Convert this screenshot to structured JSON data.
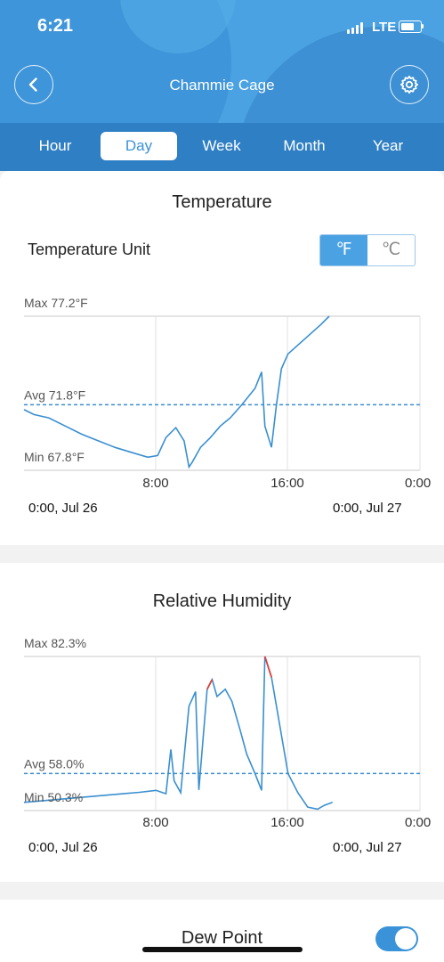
{
  "status_bar": {
    "time": "6:21",
    "network": "LTE"
  },
  "header": {
    "title": "Chammie Cage"
  },
  "tabs": [
    {
      "label": "Hour",
      "active": false
    },
    {
      "label": "Day",
      "active": true
    },
    {
      "label": "Week",
      "active": false
    },
    {
      "label": "Month",
      "active": false
    },
    {
      "label": "Year",
      "active": false
    }
  ],
  "temperature": {
    "title": "Temperature",
    "unit_label": "Temperature Unit",
    "unit_f": "℉",
    "unit_c": "℃",
    "selected_unit": "F",
    "max_label": "Max 77.2°F",
    "avg_label": "Avg 71.8°F",
    "min_label": "Min 67.8°F",
    "start_date": "0:00,  Jul 26",
    "end_date": "0:00,  Jul 27"
  },
  "humidity": {
    "title": "Relative Humidity",
    "max_label": "Max 82.3%",
    "avg_label": "Avg 58.0%",
    "min_label": "Min 50.3%",
    "start_date": "0:00,  Jul 26",
    "end_date": "0:00,  Jul 27"
  },
  "dew_point": {
    "title": "Dew Point",
    "enabled": true
  },
  "colors": {
    "accent": "#4aa2e2",
    "line": "#3a8fd0",
    "alert": "#e0403a"
  },
  "chart_data": [
    {
      "type": "line",
      "ylabel": "Temperature (°F)",
      "x_ticks": [
        "8:00",
        "16:00",
        "0:00"
      ],
      "xlim": [
        0,
        24
      ],
      "ylim": [
        67.8,
        77.2
      ],
      "avg": 71.8,
      "series": [
        {
          "x": [
            0,
            0.6,
            1.5,
            2.5,
            3.5,
            4.5,
            5.5,
            6.5,
            7.5,
            8.1,
            8.6,
            9.2,
            9.7,
            10.0,
            10.2,
            10.7,
            11.3,
            11.9,
            12.5,
            13.2,
            14.0,
            14.4,
            14.6,
            15.0,
            15.3,
            15.6,
            16.0,
            17.0,
            18.0,
            18.5
          ],
          "y": [
            71.5,
            71.2,
            71.0,
            70.5,
            70.0,
            69.6,
            69.2,
            68.9,
            68.6,
            68.7,
            69.8,
            70.4,
            69.6,
            68.0,
            68.3,
            69.2,
            69.8,
            70.5,
            71.0,
            71.8,
            72.8,
            73.8,
            70.5,
            69.2,
            71.8,
            74.0,
            74.9,
            75.8,
            76.7,
            77.2
          ]
        }
      ]
    },
    {
      "type": "line",
      "ylabel": "Relative Humidity (%)",
      "x_ticks": [
        "8:00",
        "16:00",
        "0:00"
      ],
      "xlim": [
        0,
        24
      ],
      "ylim": [
        50.3,
        82.3
      ],
      "avg": 58.0,
      "series": [
        {
          "x": [
            0,
            1,
            2,
            3,
            4,
            5,
            6,
            7,
            8.0,
            8.6,
            8.9,
            9.1,
            9.5,
            10.0,
            10.4,
            10.6,
            11.1,
            11.4,
            11.7,
            12.2,
            12.6,
            13.1,
            13.5,
            14.0,
            14.4,
            14.6,
            15.0,
            15.5,
            16.0,
            16.6,
            17.2,
            17.8,
            18.2,
            18.7
          ],
          "y": [
            52.0,
            52.3,
            52.6,
            52.9,
            53.2,
            53.5,
            53.8,
            54.1,
            54.5,
            53.8,
            63.0,
            56.5,
            54.0,
            72.0,
            75.0,
            54.6,
            75.5,
            77.5,
            74.0,
            75.5,
            73.0,
            67.0,
            62.0,
            58.0,
            54.5,
            82.3,
            78.0,
            68.0,
            58.0,
            54.0,
            51.0,
            50.6,
            51.4,
            52.0
          ]
        }
      ]
    }
  ]
}
